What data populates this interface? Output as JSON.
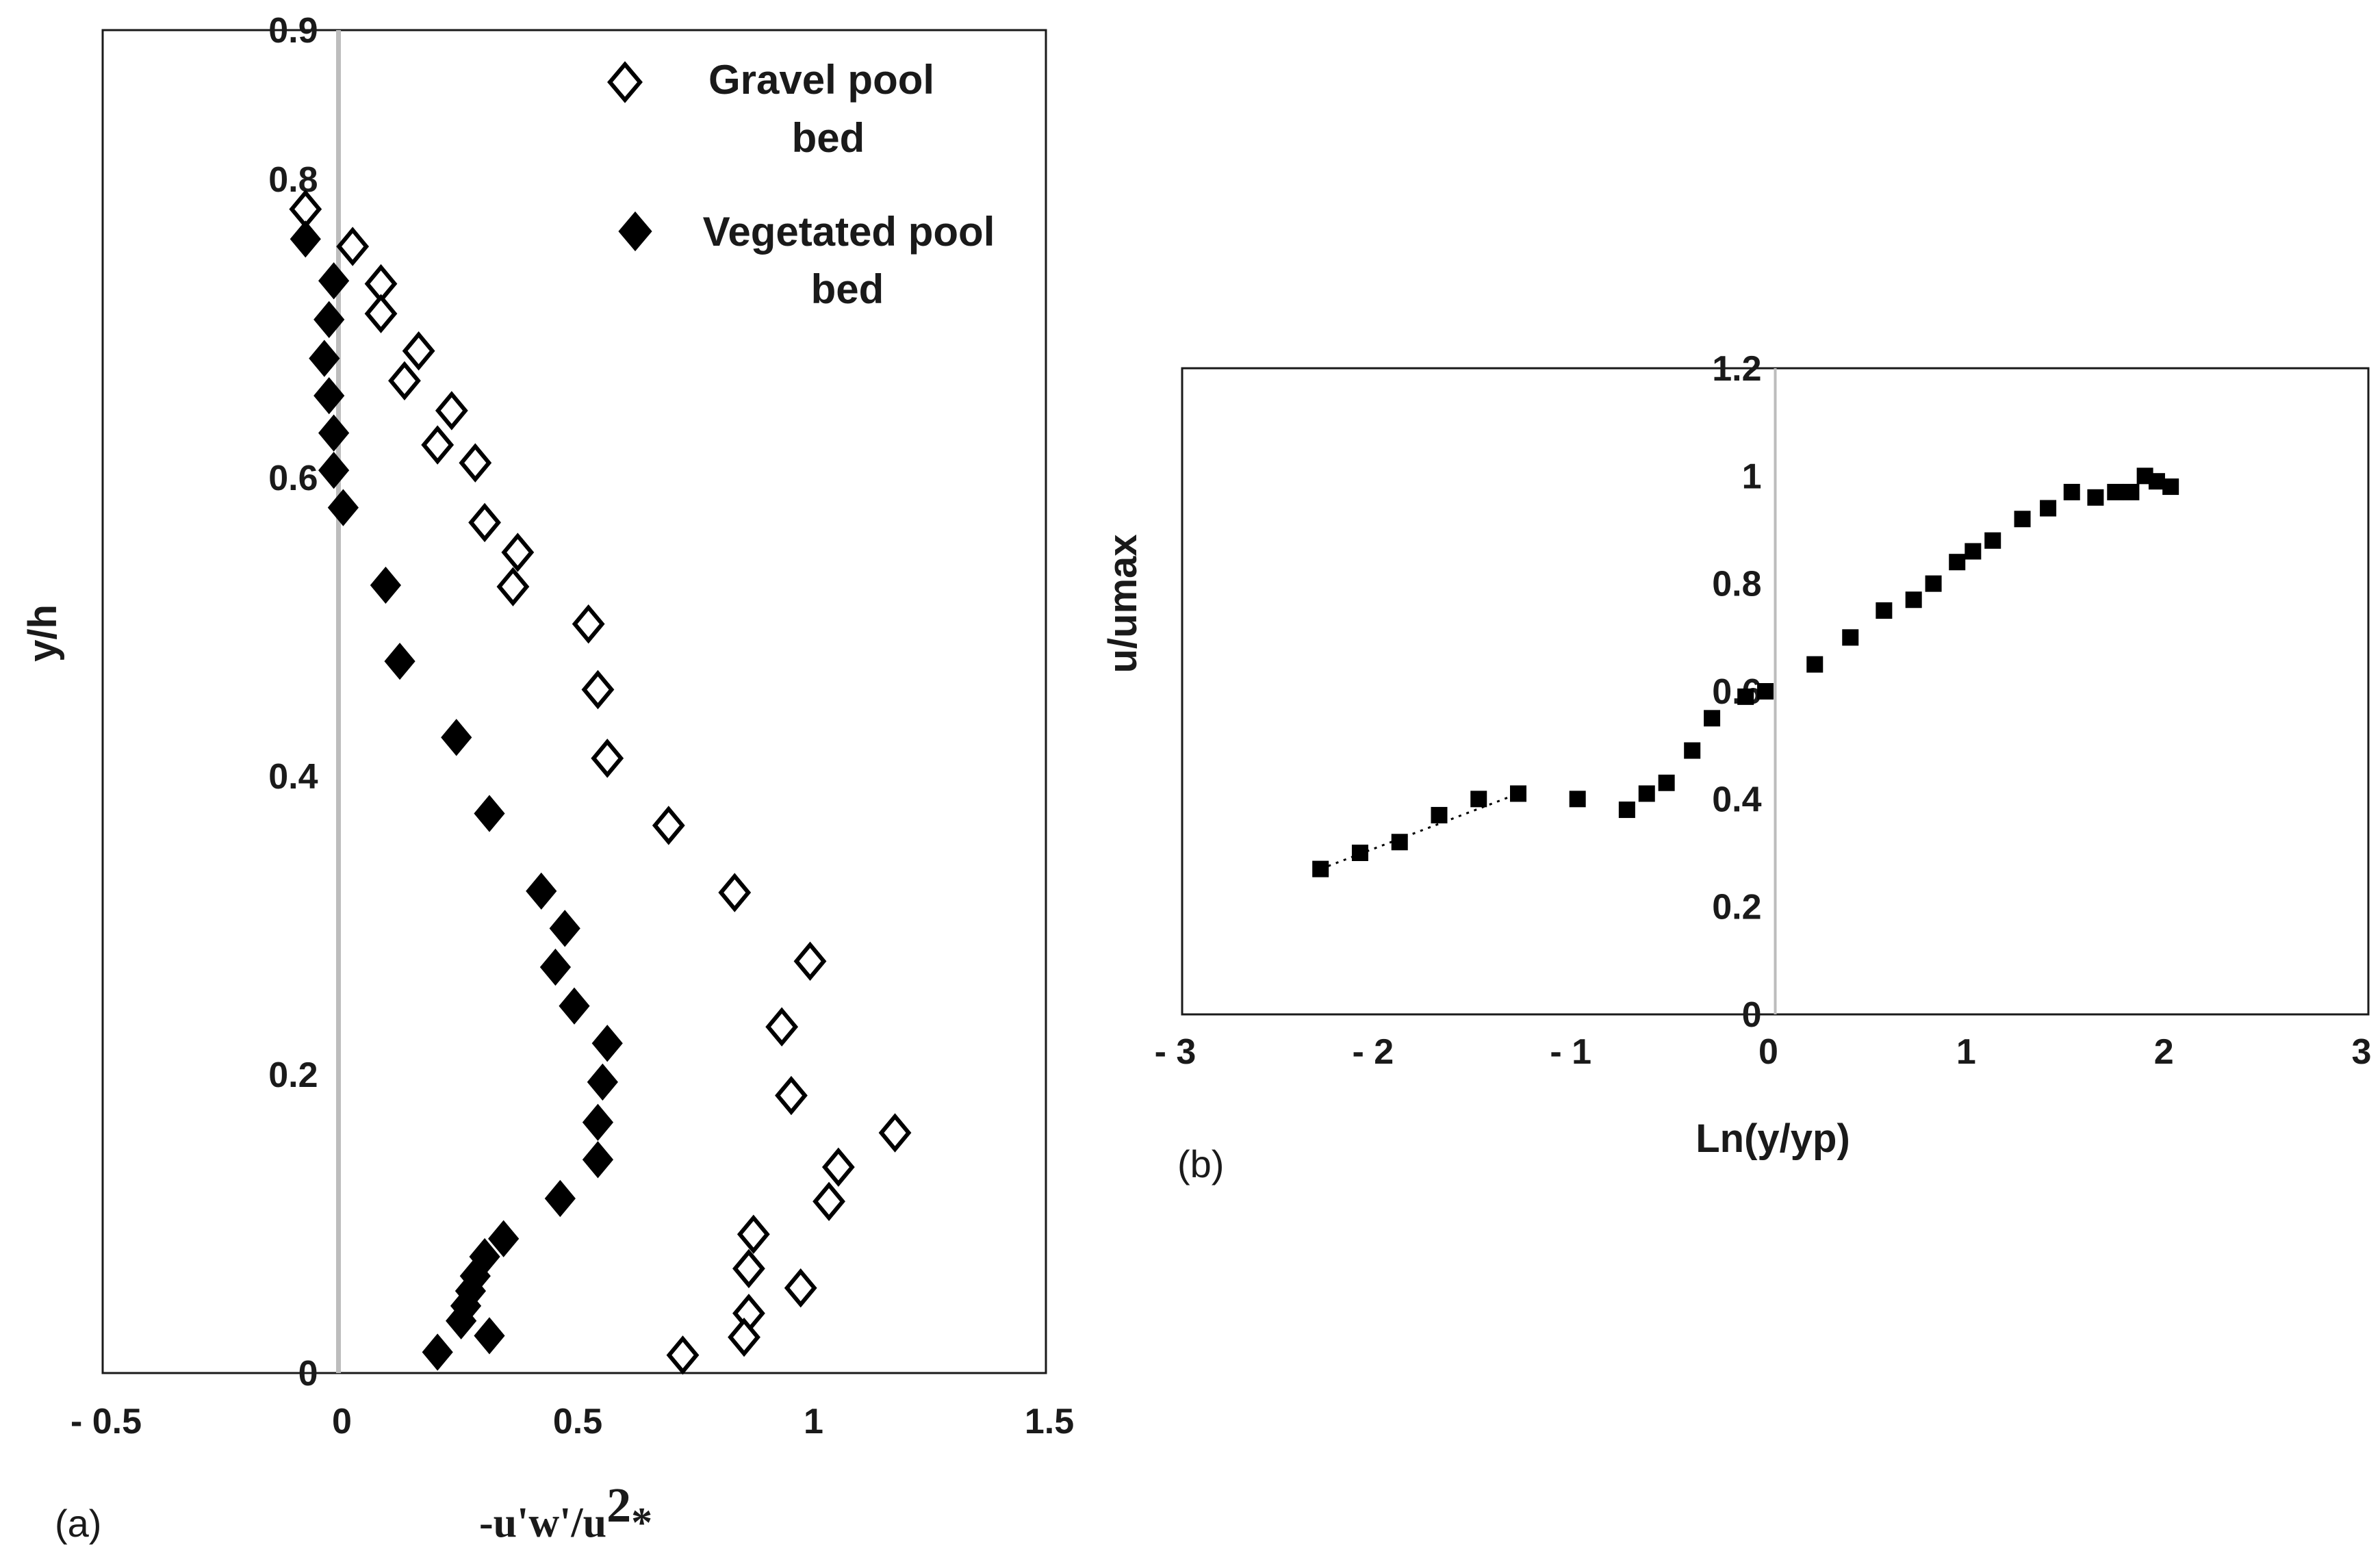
{
  "chart_data": [
    {
      "type": "scatter",
      "panel_label": "(a)",
      "title": "",
      "xlabel": "-u'w'/u",
      "xlabel_sup": "2",
      "xlabel_sub": "*",
      "ylabel": "y/h",
      "xlim": [
        -0.5,
        1.5
      ],
      "ylim": [
        0,
        0.9
      ],
      "grid": false,
      "x_ticks": [
        -0.5,
        0,
        0.5,
        1,
        1.5
      ],
      "x_tick_labels": [
        "- 0.5",
        "0",
        "0.5",
        "1",
        "1.5"
      ],
      "y_ticks": [
        0,
        0.2,
        0.4,
        0.6,
        0.8,
        0.9
      ],
      "y_tick_labels": [
        "0",
        "0.2",
        "0.4",
        "0.6",
        "0.8",
        "0.9"
      ],
      "legend_position": "top-right",
      "series": [
        {
          "name": "Gravel pool bed",
          "name_lines": [
            "Gravel pool",
            "bed"
          ],
          "marker": "diamond-open",
          "color": "#000000",
          "points": [
            [
              -0.07,
              0.78
            ],
            [
              0.03,
              0.755
            ],
            [
              0.09,
              0.73
            ],
            [
              0.09,
              0.71
            ],
            [
              0.17,
              0.685
            ],
            [
              0.14,
              0.665
            ],
            [
              0.24,
              0.645
            ],
            [
              0.21,
              0.622
            ],
            [
              0.29,
              0.61
            ],
            [
              0.31,
              0.57
            ],
            [
              0.38,
              0.55
            ],
            [
              0.37,
              0.527
            ],
            [
              0.53,
              0.502
            ],
            [
              0.55,
              0.458
            ],
            [
              0.57,
              0.412
            ],
            [
              0.7,
              0.367
            ],
            [
              0.84,
              0.322
            ],
            [
              1.0,
              0.276
            ],
            [
              0.94,
              0.232
            ],
            [
              0.96,
              0.186
            ],
            [
              1.18,
              0.161
            ],
            [
              1.06,
              0.138
            ],
            [
              1.04,
              0.115
            ],
            [
              0.88,
              0.093
            ],
            [
              0.87,
              0.07
            ],
            [
              0.98,
              0.057
            ],
            [
              0.87,
              0.04
            ],
            [
              0.86,
              0.024
            ],
            [
              0.73,
              0.012
            ]
          ]
        },
        {
          "name": "Vegetated pool bed",
          "name_lines": [
            "Vegetated pool",
            "bed"
          ],
          "marker": "diamond-filled",
          "color": "#000000",
          "points": [
            [
              -0.07,
              0.76
            ],
            [
              -0.01,
              0.732
            ],
            [
              -0.02,
              0.706
            ],
            [
              -0.03,
              0.68
            ],
            [
              -0.02,
              0.655
            ],
            [
              -0.01,
              0.63
            ],
            [
              -0.01,
              0.605
            ],
            [
              0.01,
              0.58
            ],
            [
              0.1,
              0.528
            ],
            [
              0.13,
              0.477
            ],
            [
              0.25,
              0.426
            ],
            [
              0.32,
              0.375
            ],
            [
              0.43,
              0.323
            ],
            [
              0.48,
              0.298
            ],
            [
              0.46,
              0.272
            ],
            [
              0.5,
              0.246
            ],
            [
              0.57,
              0.221
            ],
            [
              0.56,
              0.195
            ],
            [
              0.55,
              0.168
            ],
            [
              0.55,
              0.143
            ],
            [
              0.47,
              0.117
            ],
            [
              0.35,
              0.09
            ],
            [
              0.31,
              0.078
            ],
            [
              0.29,
              0.065
            ],
            [
              0.28,
              0.055
            ],
            [
              0.27,
              0.045
            ],
            [
              0.26,
              0.035
            ],
            [
              0.32,
              0.025
            ],
            [
              0.21,
              0.014
            ]
          ]
        }
      ]
    },
    {
      "type": "scatter",
      "panel_label": "(b)",
      "title": "",
      "xlabel": "Ln(y/yp)",
      "ylabel": "u/umax",
      "xlim": [
        -3,
        3
      ],
      "ylim": [
        0,
        1.2
      ],
      "grid": false,
      "x_ticks": [
        -3,
        -2,
        -1,
        0,
        1,
        2,
        3
      ],
      "x_tick_labels": [
        "- 3",
        "- 2",
        "- 1",
        "0",
        "1",
        "2",
        "3"
      ],
      "y_ticks": [
        0,
        0.2,
        0.4,
        0.6,
        0.8,
        1,
        1.2
      ],
      "y_tick_labels": [
        "0",
        "0.2",
        "0.4",
        "0.6",
        "0.8",
        "1",
        "1.2"
      ],
      "series": [
        {
          "name": "u/umax",
          "marker": "square-filled",
          "color": "#000000",
          "points": [
            [
              -2.3,
              0.27
            ],
            [
              -2.1,
              0.3
            ],
            [
              -1.9,
              0.32
            ],
            [
              -1.7,
              0.37
            ],
            [
              -1.5,
              0.4
            ],
            [
              -1.3,
              0.41
            ],
            [
              -1.0,
              0.4
            ],
            [
              -0.75,
              0.38
            ],
            [
              -0.65,
              0.41
            ],
            [
              -0.55,
              0.43
            ],
            [
              -0.42,
              0.49
            ],
            [
              -0.32,
              0.55
            ],
            [
              -0.15,
              0.59
            ],
            [
              -0.05,
              0.6
            ],
            [
              0.2,
              0.65
            ],
            [
              0.38,
              0.7
            ],
            [
              0.55,
              0.75
            ],
            [
              0.7,
              0.77
            ],
            [
              0.8,
              0.8
            ],
            [
              0.92,
              0.84
            ],
            [
              1.0,
              0.86
            ],
            [
              1.1,
              0.88
            ],
            [
              1.25,
              0.92
            ],
            [
              1.38,
              0.94
            ],
            [
              1.5,
              0.97
            ],
            [
              1.62,
              0.96
            ],
            [
              1.72,
              0.97
            ],
            [
              1.8,
              0.97
            ],
            [
              1.87,
              1.0
            ],
            [
              1.93,
              0.99
            ],
            [
              2.0,
              0.98
            ]
          ]
        },
        {
          "name": "trend",
          "marker": "dotted-line",
          "color": "#000000",
          "points": [
            [
              -2.3,
              0.27
            ],
            [
              -1.3,
              0.41
            ]
          ]
        }
      ]
    }
  ]
}
